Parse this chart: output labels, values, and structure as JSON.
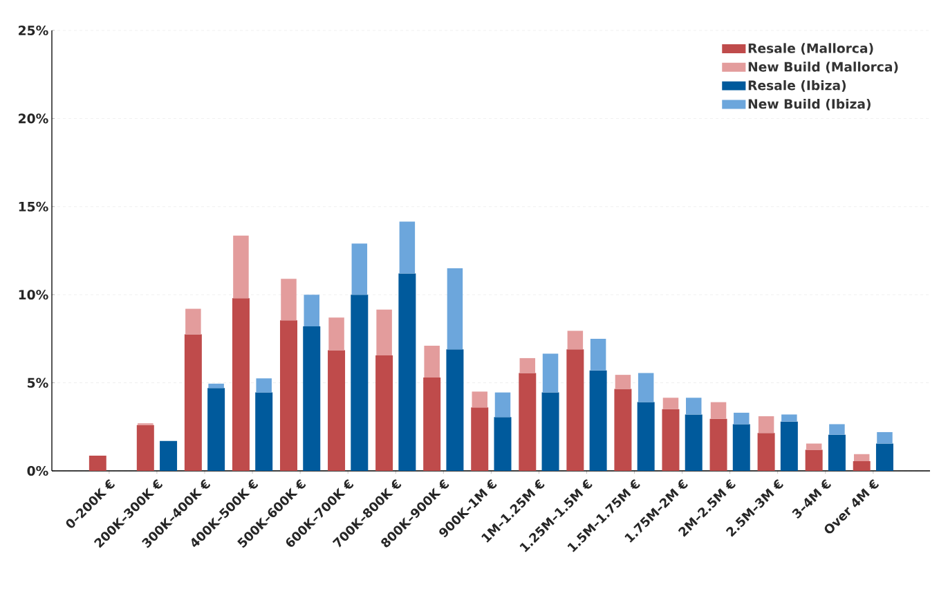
{
  "chart_data": {
    "type": "bar",
    "categories": [
      "0–200K €",
      "200K–300K €",
      "300K–400K €",
      "400K–500K €",
      "500K–600K €",
      "600K–700K €",
      "700K–800K €",
      "800K–900K €",
      "900K–1M €",
      "1M–1.25M €",
      "1.25M–1.5M €",
      "1.5M–1.75M €",
      "1.75M–2M €",
      "2M–2.5M €",
      "2.5M–3M €",
      "3–4M €",
      "Over 4M €"
    ],
    "series": [
      {
        "name": "Resale (Mallorca)",
        "color": "#bf4b4b",
        "values": [
          0.86,
          2.6,
          7.75,
          9.8,
          8.55,
          6.85,
          6.55,
          5.3,
          3.6,
          5.55,
          6.9,
          4.65,
          3.5,
          2.95,
          2.15,
          1.2,
          0.55
        ]
      },
      {
        "name": "New Build (Mallorca)",
        "color": "#e39c9c",
        "base": [
          null,
          2.6,
          7.75,
          9.8,
          8.55,
          6.85,
          6.55,
          5.3,
          3.6,
          5.55,
          6.9,
          4.65,
          3.5,
          2.95,
          2.15,
          1.2,
          0.55
        ],
        "values": [
          null,
          0.1,
          1.45,
          3.55,
          2.35,
          1.85,
          2.6,
          1.8,
          0.9,
          0.85,
          1.05,
          0.8,
          0.65,
          0.95,
          0.95,
          0.35,
          0.4
        ]
      },
      {
        "name": "Resale (Ibiza)",
        "color": "#005a9c",
        "values": [
          0,
          1.7,
          4.7,
          4.45,
          8.2,
          10.0,
          11.2,
          6.9,
          3.05,
          4.45,
          5.7,
          3.9,
          3.2,
          2.65,
          2.8,
          2.05,
          1.55
        ]
      },
      {
        "name": "New Build (Ibiza)",
        "color": "#6ca6dc",
        "base": [
          null,
          null,
          4.7,
          4.45,
          8.2,
          10.0,
          11.2,
          6.9,
          3.05,
          4.45,
          5.7,
          3.9,
          3.2,
          2.65,
          2.8,
          2.05,
          1.55
        ],
        "values": [
          null,
          null,
          0.25,
          0.8,
          1.8,
          2.9,
          2.95,
          4.6,
          1.4,
          2.2,
          1.8,
          1.65,
          0.95,
          0.65,
          0.4,
          0.6,
          0.65
        ]
      }
    ],
    "ylim": [
      0,
      25
    ],
    "yticks": [
      {
        "value": 0,
        "label": "0%"
      },
      {
        "value": 5,
        "label": "5%"
      },
      {
        "value": 10,
        "label": "10%"
      },
      {
        "value": 15,
        "label": "15%"
      },
      {
        "value": 20,
        "label": "20%"
      },
      {
        "value": 25,
        "label": "25%"
      }
    ],
    "grid": "y",
    "legend": "top right"
  }
}
